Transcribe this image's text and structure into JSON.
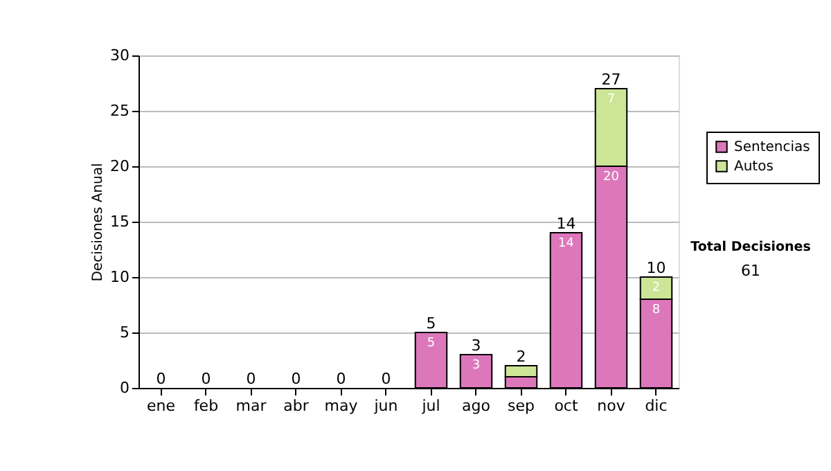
{
  "chart_data": {
    "type": "bar",
    "stacked": true,
    "ylabel": "Decisiones Anual",
    "categories": [
      "ene",
      "feb",
      "mar",
      "abr",
      "may",
      "jun",
      "jul",
      "ago",
      "sep",
      "oct",
      "nov",
      "dic"
    ],
    "series": [
      {
        "name": "Sentencias",
        "color": "#dd77bb",
        "values": [
          0,
          0,
          0,
          0,
          0,
          0,
          5,
          3,
          1,
          14,
          20,
          8
        ],
        "value_labels": [
          null,
          null,
          null,
          null,
          null,
          null,
          "5",
          "3",
          null,
          "14",
          "20",
          "8"
        ]
      },
      {
        "name": "Autos",
        "color": "#cce596",
        "values": [
          0,
          0,
          0,
          0,
          0,
          0,
          0,
          0,
          1,
          0,
          7,
          2
        ],
        "value_labels": [
          null,
          null,
          null,
          null,
          null,
          null,
          null,
          null,
          null,
          null,
          "7",
          "2"
        ]
      }
    ],
    "totals": [
      "0",
      "0",
      "0",
      "0",
      "0",
      "0",
      "5",
      "3",
      "2",
      "14",
      "27",
      "10"
    ],
    "ylim": [
      0,
      30
    ],
    "yticks": [
      0,
      5,
      10,
      15,
      20,
      25,
      30
    ],
    "grid": "y",
    "legend": "right",
    "annotations": [
      "Total Decisiones",
      "61"
    ]
  }
}
